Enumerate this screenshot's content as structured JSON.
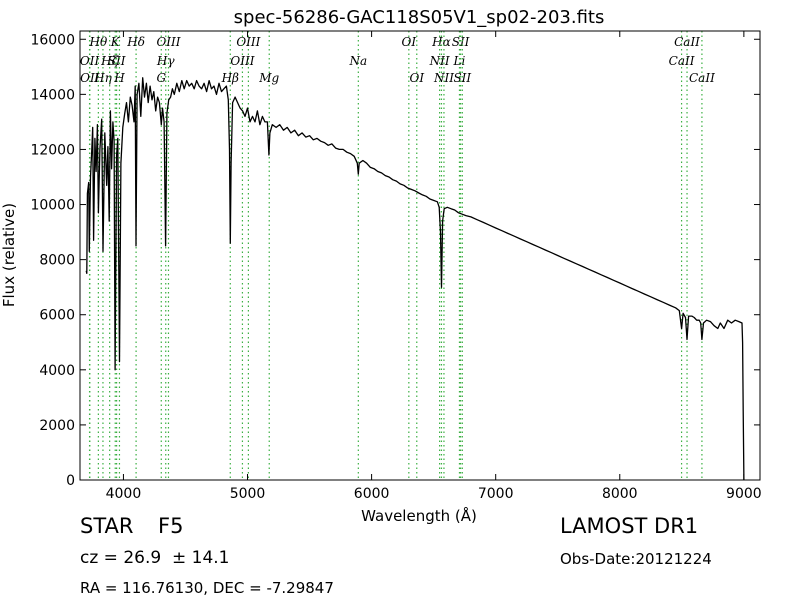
{
  "chart_data": {
    "type": "line",
    "title": "spec-56286-GAC118S05V1_sp02-203.fits",
    "xlabel": "Wavelength (Å)",
    "ylabel": "Flux (relative)",
    "xlim": [
      3650,
      9130
    ],
    "ylim": [
      0,
      16300
    ],
    "grid": false,
    "xticks": [
      4000,
      5000,
      6000,
      7000,
      8000,
      9000
    ],
    "yticks": [
      0,
      2000,
      4000,
      6000,
      8000,
      10000,
      12000,
      14000,
      16000
    ],
    "line_color": "#000000",
    "marker_color": "#3cb043",
    "series": [
      {
        "values": [
          [
            3700,
            7600
          ],
          [
            3705,
            7500
          ],
          [
            3710,
            10400
          ],
          [
            3720,
            10800
          ],
          [
            3725,
            8300
          ],
          [
            3735,
            11000
          ],
          [
            3745,
            12000
          ],
          [
            3752,
            12800
          ],
          [
            3760,
            8700
          ],
          [
            3770,
            12400
          ],
          [
            3780,
            11200
          ],
          [
            3790,
            12900
          ],
          [
            3798,
            9700
          ],
          [
            3810,
            12000
          ],
          [
            3825,
            13100
          ],
          [
            3835,
            8300
          ],
          [
            3850,
            12600
          ],
          [
            3865,
            10700
          ],
          [
            3875,
            12100
          ],
          [
            3885,
            9400
          ],
          [
            3895,
            13400
          ],
          [
            3905,
            11300
          ],
          [
            3915,
            13000
          ],
          [
            3925,
            12300
          ],
          [
            3933,
            4000
          ],
          [
            3945,
            11800
          ],
          [
            3955,
            12400
          ],
          [
            3968,
            4300
          ],
          [
            3980,
            11500
          ],
          [
            3995,
            12800
          ],
          [
            4010,
            13300
          ],
          [
            4025,
            13700
          ],
          [
            4040,
            13000
          ],
          [
            4055,
            13900
          ],
          [
            4070,
            13600
          ],
          [
            4085,
            13000
          ],
          [
            4095,
            14300
          ],
          [
            4101,
            8500
          ],
          [
            4110,
            14000
          ],
          [
            4125,
            14400
          ],
          [
            4140,
            13200
          ],
          [
            4155,
            14600
          ],
          [
            4170,
            13900
          ],
          [
            4185,
            14400
          ],
          [
            4200,
            13700
          ],
          [
            4215,
            14300
          ],
          [
            4230,
            13800
          ],
          [
            4245,
            14100
          ],
          [
            4260,
            13400
          ],
          [
            4275,
            13900
          ],
          [
            4290,
            13700
          ],
          [
            4305,
            12900
          ],
          [
            4315,
            13500
          ],
          [
            4328,
            13000
          ],
          [
            4340,
            8500
          ],
          [
            4350,
            13300
          ],
          [
            4365,
            13800
          ],
          [
            4380,
            13900
          ],
          [
            4395,
            14200
          ],
          [
            4410,
            14000
          ],
          [
            4430,
            14400
          ],
          [
            4450,
            14100
          ],
          [
            4470,
            14500
          ],
          [
            4490,
            14200
          ],
          [
            4510,
            14500
          ],
          [
            4530,
            14300
          ],
          [
            4550,
            14400
          ],
          [
            4570,
            14200
          ],
          [
            4590,
            14500
          ],
          [
            4610,
            14300
          ],
          [
            4630,
            14200
          ],
          [
            4650,
            14400
          ],
          [
            4670,
            14100
          ],
          [
            4690,
            14500
          ],
          [
            4710,
            14200
          ],
          [
            4730,
            14300
          ],
          [
            4750,
            14000
          ],
          [
            4770,
            14400
          ],
          [
            4790,
            14100
          ],
          [
            4810,
            14200
          ],
          [
            4830,
            14300
          ],
          [
            4845,
            13800
          ],
          [
            4855,
            12000
          ],
          [
            4861,
            8600
          ],
          [
            4868,
            11500
          ],
          [
            4880,
            13700
          ],
          [
            4900,
            13900
          ],
          [
            4920,
            13700
          ],
          [
            4940,
            13500
          ],
          [
            4960,
            13400
          ],
          [
            4980,
            13200
          ],
          [
            5000,
            13500
          ],
          [
            5020,
            13000
          ],
          [
            5040,
            13200
          ],
          [
            5060,
            13000
          ],
          [
            5080,
            13400
          ],
          [
            5100,
            12900
          ],
          [
            5120,
            13200
          ],
          [
            5140,
            13000
          ],
          [
            5160,
            13000
          ],
          [
            5172,
            11800
          ],
          [
            5180,
            12600
          ],
          [
            5200,
            12900
          ],
          [
            5230,
            12800
          ],
          [
            5260,
            12900
          ],
          [
            5290,
            12700
          ],
          [
            5320,
            12800
          ],
          [
            5350,
            12600
          ],
          [
            5380,
            12700
          ],
          [
            5410,
            12500
          ],
          [
            5440,
            12600
          ],
          [
            5470,
            12450
          ],
          [
            5500,
            12500
          ],
          [
            5530,
            12350
          ],
          [
            5560,
            12400
          ],
          [
            5590,
            12300
          ],
          [
            5620,
            12250
          ],
          [
            5650,
            12150
          ],
          [
            5680,
            12200
          ],
          [
            5710,
            12050
          ],
          [
            5740,
            12000
          ],
          [
            5770,
            12000
          ],
          [
            5800,
            11900
          ],
          [
            5830,
            11850
          ],
          [
            5860,
            11750
          ],
          [
            5885,
            11500
          ],
          [
            5893,
            11100
          ],
          [
            5900,
            11500
          ],
          [
            5930,
            11600
          ],
          [
            5960,
            11500
          ],
          [
            5990,
            11350
          ],
          [
            6020,
            11300
          ],
          [
            6050,
            11200
          ],
          [
            6080,
            11150
          ],
          [
            6110,
            11050
          ],
          [
            6140,
            11000
          ],
          [
            6170,
            10900
          ],
          [
            6200,
            10850
          ],
          [
            6230,
            10750
          ],
          [
            6260,
            10700
          ],
          [
            6290,
            10600
          ],
          [
            6320,
            10550
          ],
          [
            6350,
            10500
          ],
          [
            6380,
            10420
          ],
          [
            6410,
            10350
          ],
          [
            6440,
            10300
          ],
          [
            6470,
            10200
          ],
          [
            6500,
            10150
          ],
          [
            6530,
            10100
          ],
          [
            6545,
            9900
          ],
          [
            6555,
            9000
          ],
          [
            6563,
            7000
          ],
          [
            6572,
            9400
          ],
          [
            6585,
            9850
          ],
          [
            6610,
            9900
          ],
          [
            6640,
            9850
          ],
          [
            6670,
            9800
          ],
          [
            6700,
            9700
          ],
          [
            6730,
            9650
          ],
          [
            6760,
            9600
          ],
          [
            6800,
            9550
          ],
          [
            6850,
            9450
          ],
          [
            6900,
            9350
          ],
          [
            6950,
            9250
          ],
          [
            7000,
            9150
          ],
          [
            7050,
            9050
          ],
          [
            7100,
            8950
          ],
          [
            7150,
            8850
          ],
          [
            7200,
            8750
          ],
          [
            7250,
            8650
          ],
          [
            7300,
            8550
          ],
          [
            7350,
            8450
          ],
          [
            7400,
            8350
          ],
          [
            7450,
            8250
          ],
          [
            7500,
            8150
          ],
          [
            7550,
            8050
          ],
          [
            7600,
            7950
          ],
          [
            7650,
            7850
          ],
          [
            7700,
            7750
          ],
          [
            7750,
            7650
          ],
          [
            7800,
            7550
          ],
          [
            7850,
            7450
          ],
          [
            7900,
            7350
          ],
          [
            7950,
            7250
          ],
          [
            8000,
            7150
          ],
          [
            8050,
            7050
          ],
          [
            8100,
            6950
          ],
          [
            8150,
            6850
          ],
          [
            8200,
            6750
          ],
          [
            8250,
            6650
          ],
          [
            8300,
            6550
          ],
          [
            8350,
            6450
          ],
          [
            8400,
            6350
          ],
          [
            8450,
            6250
          ],
          [
            8480,
            6150
          ],
          [
            8498,
            5500
          ],
          [
            8510,
            6050
          ],
          [
            8530,
            5900
          ],
          [
            8542,
            5100
          ],
          [
            8555,
            5950
          ],
          [
            8580,
            5950
          ],
          [
            8600,
            5900
          ],
          [
            8620,
            5800
          ],
          [
            8640,
            5800
          ],
          [
            8652,
            5700
          ],
          [
            8662,
            5100
          ],
          [
            8675,
            5700
          ],
          [
            8700,
            5800
          ],
          [
            8730,
            5750
          ],
          [
            8760,
            5600
          ],
          [
            8790,
            5500
          ],
          [
            8810,
            5700
          ],
          [
            8840,
            5500
          ],
          [
            8870,
            5800
          ],
          [
            8900,
            5700
          ],
          [
            8930,
            5800
          ],
          [
            8960,
            5750
          ],
          [
            8985,
            5700
          ],
          [
            8990,
            5000
          ],
          [
            8995,
            2500
          ],
          [
            9000,
            0
          ]
        ]
      }
    ],
    "lines": [
      {
        "label": "OII",
        "wave": 3727,
        "row": 2
      },
      {
        "label": "OII",
        "wave": 3729,
        "row": 3
      },
      {
        "label": "Hθ",
        "wave": 3798,
        "row": 1
      },
      {
        "label": "Hη",
        "wave": 3835,
        "row": 3
      },
      {
        "label": "Hζ",
        "wave": 3889,
        "row": 2
      },
      {
        "label": "K",
        "wave": 3934,
        "row": 1
      },
      {
        "label": "SII",
        "wave": 3945,
        "row": 2
      },
      {
        "label": "H",
        "wave": 3968,
        "row": 3
      },
      {
        "label": "Hδ",
        "wave": 4102,
        "row": 1
      },
      {
        "label": "OIII",
        "wave": 4363,
        "row": 1
      },
      {
        "label": "Hγ",
        "wave": 4341,
        "row": 2
      },
      {
        "label": "G",
        "wave": 4305,
        "row": 3
      },
      {
        "label": "OIII",
        "wave": 5007,
        "row": 1
      },
      {
        "label": "OIII",
        "wave": 4959,
        "row": 2
      },
      {
        "label": "Hβ",
        "wave": 4861,
        "row": 3
      },
      {
        "label": "Mg",
        "wave": 5175,
        "row": 3
      },
      {
        "label": "Na",
        "wave": 5893,
        "row": 2
      },
      {
        "label": "OI",
        "wave": 6300,
        "row": 1
      },
      {
        "label": "OI",
        "wave": 6364,
        "row": 3
      },
      {
        "label": "Hα",
        "wave": 6563,
        "row": 1
      },
      {
        "label": "NII",
        "wave": 6548,
        "row": 2
      },
      {
        "label": "NII",
        "wave": 6583,
        "row": 3
      },
      {
        "label": "SII",
        "wave": 6717,
        "row": 1
      },
      {
        "label": "Li",
        "wave": 6708,
        "row": 2
      },
      {
        "label": "SII",
        "wave": 6731,
        "row": 3
      },
      {
        "label": "CaII",
        "wave": 8542,
        "row": 1
      },
      {
        "label": "CaII",
        "wave": 8498,
        "row": 2
      },
      {
        "label": "CaII",
        "wave": 8662,
        "row": 3
      }
    ]
  },
  "info": {
    "class_label": "STAR",
    "subclass_label": "F5",
    "survey": "LAMOST DR1",
    "cz": "cz = 26.9  ± 14.1",
    "obs_date": "Obs-Date:20121224",
    "coords": "RA = 116.76130, DEC = -7.29847"
  }
}
